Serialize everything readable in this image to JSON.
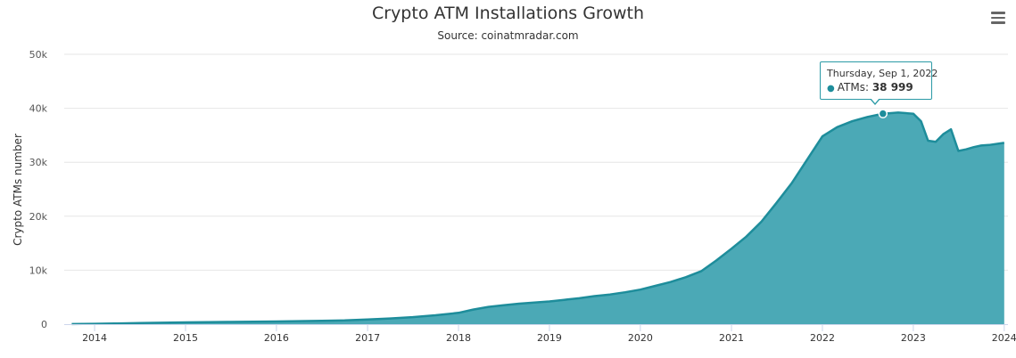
{
  "chart_data": {
    "type": "area",
    "title": "Crypto ATM Installations Growth",
    "subtitle": "Source: coinatmradar.com",
    "xlabel": "",
    "ylabel": "Crypto ATMs number",
    "ylim": [
      0,
      50000
    ],
    "y_ticks": [
      "0",
      "10k",
      "20k",
      "30k",
      "40k",
      "50k"
    ],
    "y_tick_values": [
      0,
      10000,
      20000,
      30000,
      40000,
      50000
    ],
    "x_ticks": [
      "2014",
      "2015",
      "2016",
      "2017",
      "2018",
      "2019",
      "2020",
      "2021",
      "2022",
      "2023",
      "2024"
    ],
    "x_tick_values": [
      "2014-01-01",
      "2015-01-01",
      "2016-01-01",
      "2017-01-01",
      "2018-01-01",
      "2019-01-01",
      "2020-01-01",
      "2021-01-01",
      "2022-01-01",
      "2023-01-01",
      "2024-01-01"
    ],
    "grid": true,
    "legend": "none",
    "series": [
      {
        "name": "ATMs",
        "color": "#1e8d9b",
        "fill": "#4ba9b6",
        "points": [
          [
            "2013-10-01",
            20
          ],
          [
            "2014-01-01",
            60
          ],
          [
            "2014-04-01",
            130
          ],
          [
            "2014-07-01",
            200
          ],
          [
            "2014-10-01",
            270
          ],
          [
            "2015-01-01",
            330
          ],
          [
            "2015-04-01",
            380
          ],
          [
            "2015-07-01",
            420
          ],
          [
            "2015-10-01",
            460
          ],
          [
            "2016-01-01",
            500
          ],
          [
            "2016-04-01",
            560
          ],
          [
            "2016-07-01",
            620
          ],
          [
            "2016-10-01",
            700
          ],
          [
            "2017-01-01",
            850
          ],
          [
            "2017-04-01",
            1050
          ],
          [
            "2017-07-01",
            1300
          ],
          [
            "2017-10-01",
            1650
          ],
          [
            "2018-01-01",
            2100
          ],
          [
            "2018-03-01",
            2700
          ],
          [
            "2018-05-01",
            3200
          ],
          [
            "2018-07-01",
            3500
          ],
          [
            "2018-09-01",
            3800
          ],
          [
            "2018-11-01",
            4000
          ],
          [
            "2019-01-01",
            4200
          ],
          [
            "2019-03-01",
            4500
          ],
          [
            "2019-05-01",
            4800
          ],
          [
            "2019-07-01",
            5200
          ],
          [
            "2019-09-01",
            5500
          ],
          [
            "2019-11-01",
            5900
          ],
          [
            "2020-01-01",
            6400
          ],
          [
            "2020-03-01",
            7100
          ],
          [
            "2020-05-01",
            7800
          ],
          [
            "2020-07-01",
            8700
          ],
          [
            "2020-09-01",
            9800
          ],
          [
            "2020-11-01",
            11800
          ],
          [
            "2021-01-01",
            14000
          ],
          [
            "2021-03-01",
            16200
          ],
          [
            "2021-05-01",
            19000
          ],
          [
            "2021-07-01",
            22500
          ],
          [
            "2021-09-01",
            26200
          ],
          [
            "2021-11-01",
            30500
          ],
          [
            "2022-01-01",
            34800
          ],
          [
            "2022-03-01",
            36500
          ],
          [
            "2022-05-01",
            37600
          ],
          [
            "2022-07-01",
            38400
          ],
          [
            "2022-09-01",
            38999
          ],
          [
            "2022-11-01",
            39200
          ],
          [
            "2023-01-01",
            39000
          ],
          [
            "2023-02-01",
            37600
          ],
          [
            "2023-03-01",
            34000
          ],
          [
            "2023-04-01",
            33800
          ],
          [
            "2023-05-01",
            35200
          ],
          [
            "2023-06-01",
            36100
          ],
          [
            "2023-07-01",
            32100
          ],
          [
            "2023-08-01",
            32400
          ],
          [
            "2023-09-01",
            32800
          ],
          [
            "2023-10-01",
            33100
          ],
          [
            "2023-11-01",
            33200
          ],
          [
            "2023-12-01",
            33400
          ],
          [
            "2024-01-01",
            33600
          ]
        ]
      }
    ],
    "tooltip": {
      "date": "Thursday, Sep 1, 2022",
      "series_label": "ATMs:",
      "value": "38 999",
      "x": "2022-09-01",
      "y": 38999
    }
  },
  "ui": {
    "menu_icon": "hamburger-menu-icon"
  }
}
